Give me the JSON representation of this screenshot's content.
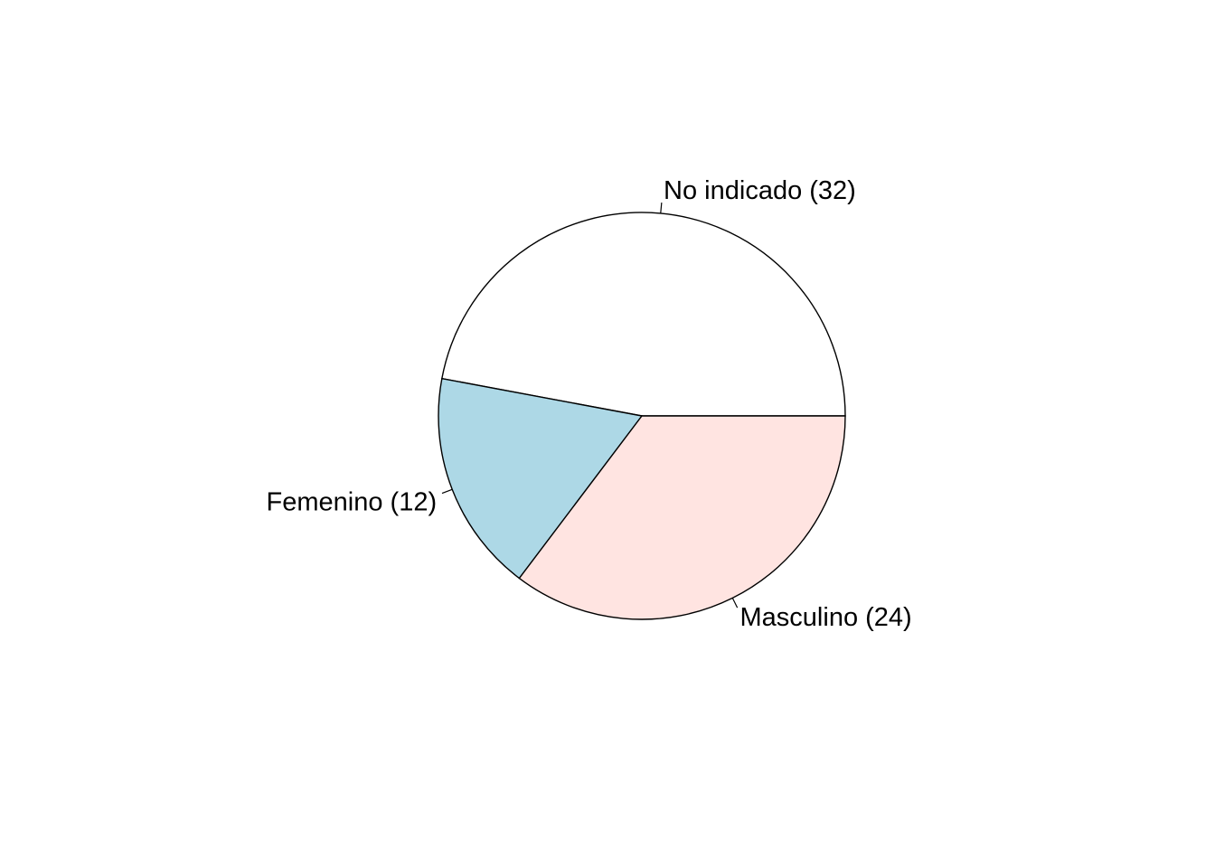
{
  "chart_data": {
    "type": "pie",
    "title": "",
    "start_angle_deg": 0,
    "direction": "counterclockwise",
    "slices": [
      {
        "category": "No indicado",
        "value": 32,
        "label": "No indicado (32)",
        "color": "#ffffff"
      },
      {
        "category": "Femenino",
        "value": 12,
        "label": "Femenino (12)",
        "color": "#add8e6"
      },
      {
        "category": "Masculino",
        "value": 24,
        "label": "Masculino (24)",
        "color": "#ffe4e1"
      }
    ]
  }
}
